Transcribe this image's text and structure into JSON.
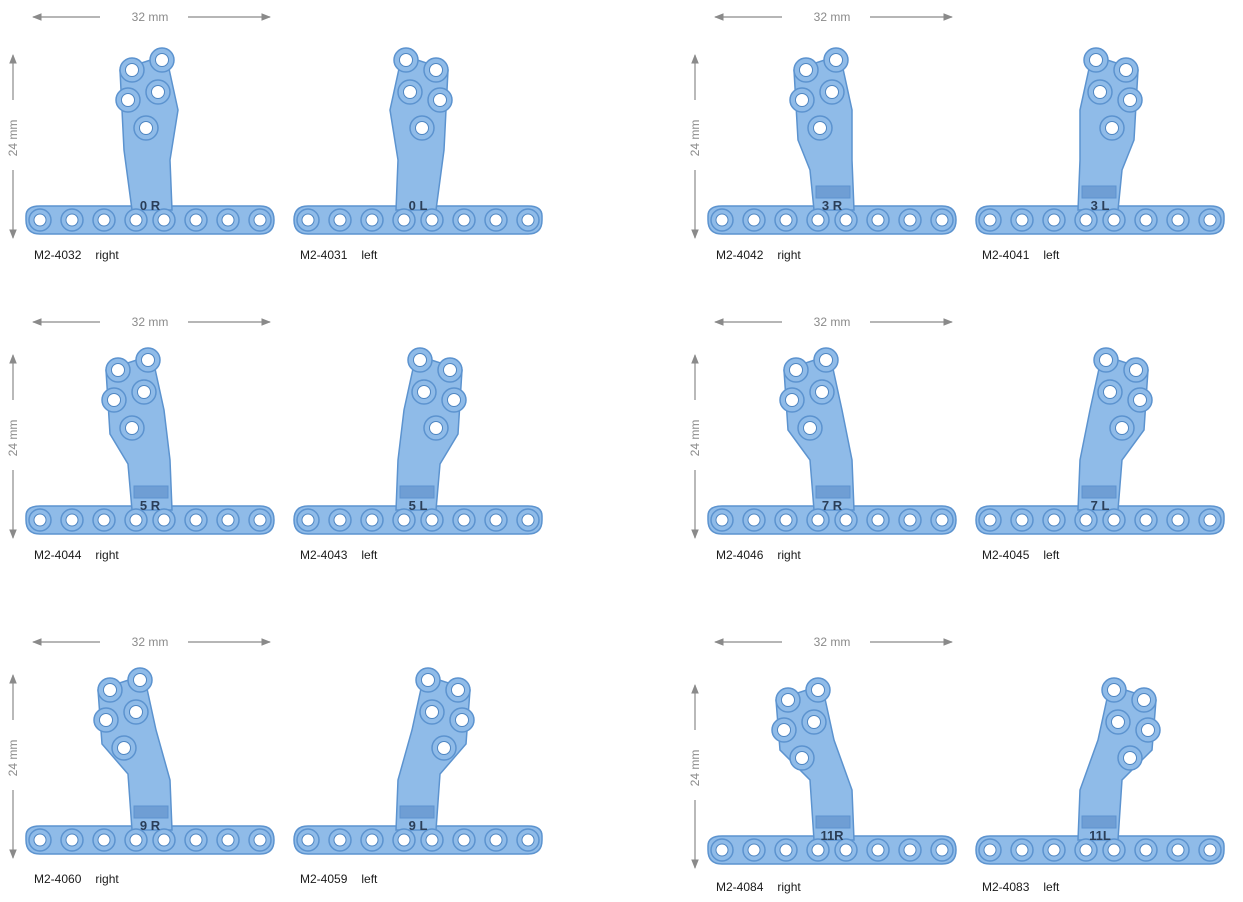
{
  "dimensions": {
    "width_label": "32 mm",
    "height_label": "24 mm"
  },
  "plate_color": "#8fbbe8",
  "plate_edge_color": "#5c93cf",
  "panels": [
    {
      "plates": [
        {
          "number": "0 R",
          "code": "M2-4032",
          "side": "right"
        },
        {
          "number": "0 L",
          "code": "M2-4031",
          "side": "left"
        }
      ]
    },
    {
      "plates": [
        {
          "number": "3 R",
          "code": "M2-4042",
          "side": "right"
        },
        {
          "number": "3 L",
          "code": "M2-4041",
          "side": "left"
        }
      ]
    },
    {
      "plates": [
        {
          "number": "5 R",
          "code": "M2-4044",
          "side": "right"
        },
        {
          "number": "5 L",
          "code": "M2-4043",
          "side": "left"
        }
      ]
    },
    {
      "plates": [
        {
          "number": "7 R",
          "code": "M2-4046",
          "side": "right"
        },
        {
          "number": "7 L",
          "code": "M2-4045",
          "side": "left"
        }
      ]
    },
    {
      "plates": [
        {
          "number": "9 R",
          "code": "M2-4060",
          "side": "right"
        },
        {
          "number": "9 L",
          "code": "M2-4059",
          "side": "left"
        }
      ]
    },
    {
      "plates": [
        {
          "number": "11R",
          "code": "M2-4084",
          "side": "right"
        },
        {
          "number": "11L",
          "code": "M2-4083",
          "side": "left"
        }
      ]
    }
  ]
}
